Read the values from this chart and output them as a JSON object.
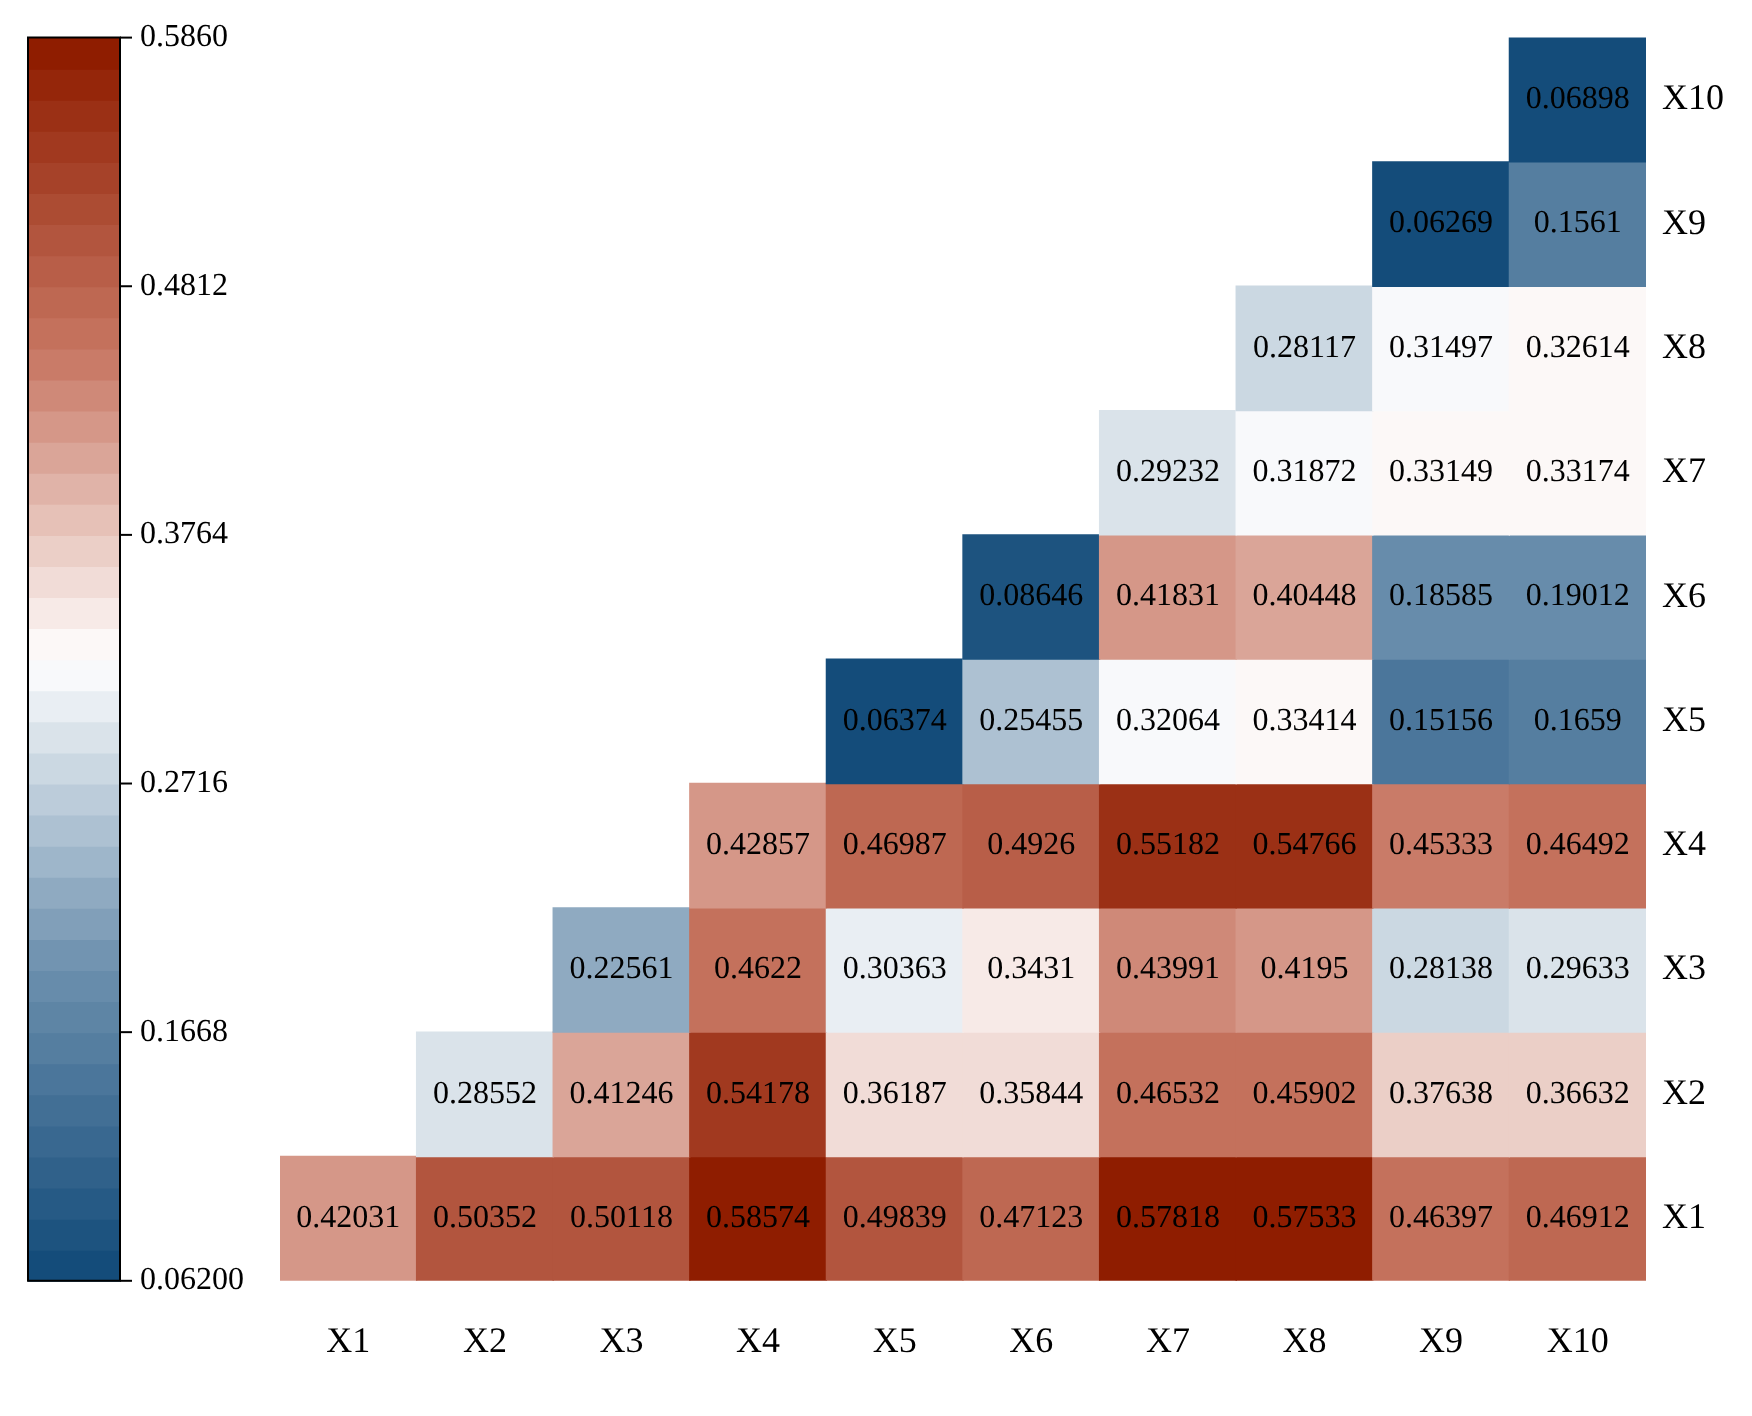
{
  "chart_data": {
    "type": "heatmap",
    "categories": [
      "X1",
      "X2",
      "X3",
      "X4",
      "X5",
      "X6",
      "X7",
      "X8",
      "X9",
      "X10"
    ],
    "y_categories": [
      "X10",
      "X9",
      "X8",
      "X7",
      "X6",
      "X5",
      "X4",
      "X3",
      "X2",
      "X1"
    ],
    "cells": [
      [
        null,
        null,
        null,
        null,
        null,
        null,
        null,
        null,
        null,
        0.06898
      ],
      [
        null,
        null,
        null,
        null,
        null,
        null,
        null,
        null,
        0.06269,
        0.1561
      ],
      [
        null,
        null,
        null,
        null,
        null,
        null,
        null,
        0.28117,
        0.31497,
        0.32614
      ],
      [
        null,
        null,
        null,
        null,
        null,
        null,
        0.29232,
        0.31872,
        0.33149,
        0.33174
      ],
      [
        null,
        null,
        null,
        null,
        null,
        0.08646,
        0.41831,
        0.40448,
        0.18585,
        0.19012
      ],
      [
        null,
        null,
        null,
        null,
        0.06374,
        0.25455,
        0.32064,
        0.33414,
        0.15156,
        0.1659
      ],
      [
        null,
        null,
        null,
        0.42857,
        0.46987,
        0.4926,
        0.55182,
        0.54766,
        0.45333,
        0.46492
      ],
      [
        null,
        null,
        0.22561,
        0.4622,
        0.30363,
        0.3431,
        0.43991,
        0.4195,
        0.28138,
        0.29633
      ],
      [
        null,
        0.28552,
        0.41246,
        0.54178,
        0.36187,
        0.35844,
        0.46532,
        0.45902,
        0.37638,
        0.36632
      ],
      [
        0.42031,
        0.50352,
        0.50118,
        0.58574,
        0.49839,
        0.47123,
        0.57818,
        0.57533,
        0.46397,
        0.46912
      ]
    ],
    "clim": [
      0.062,
      0.586
    ],
    "cticks": [
      {
        "value": 0.062,
        "label": "0.06200"
      },
      0.1668,
      0.2716,
      0.3764,
      0.4812,
      {
        "value": 0.586,
        "label": "0.5860"
      }
    ],
    "data_labels": true
  }
}
